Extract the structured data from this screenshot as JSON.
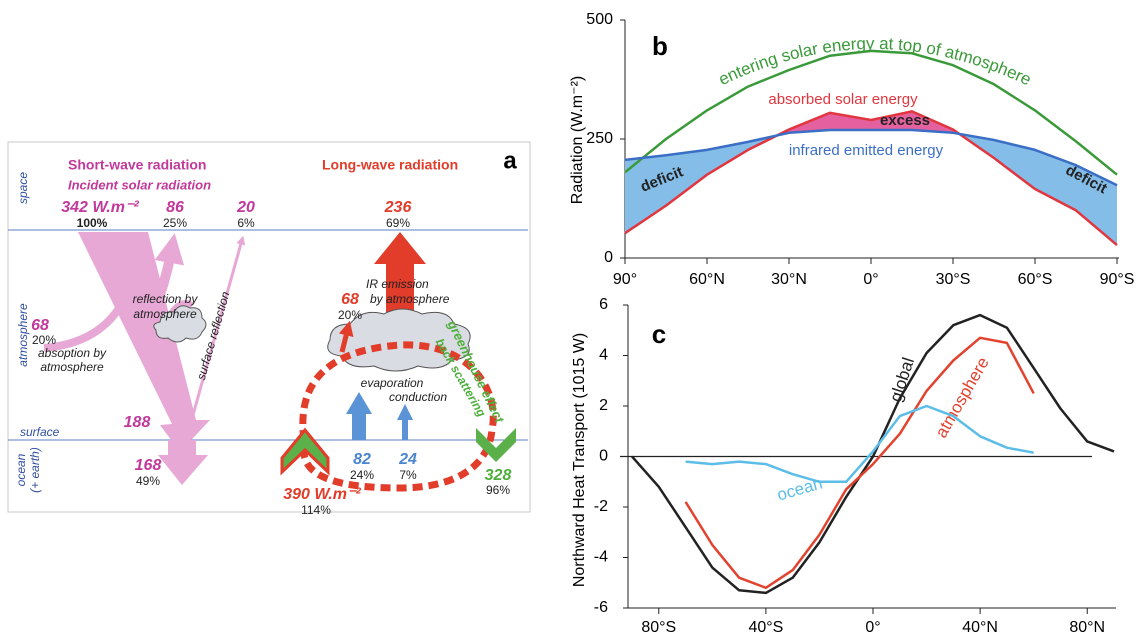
{
  "diagram": {
    "panel_label": "a",
    "short_wave_title": "Short-wave radiation",
    "short_wave_subtitle": "Incident solar radiation",
    "long_wave_title": "Long-wave radiation",
    "layers": {
      "space": "space",
      "atmosphere": "atmosphere",
      "surface": "surface",
      "ocean": "ocean",
      "ocean_note": "(+ earth)"
    },
    "incident": {
      "value": "342 W.m⁻²",
      "percent": "100%"
    },
    "reflected_atmosphere": {
      "value": "86",
      "percent": "25%",
      "label": [
        "reflection by",
        "atmosphere"
      ]
    },
    "reflected_surface": {
      "value": "20",
      "percent": "6%",
      "label": "surface reflection"
    },
    "absorbed_atmosphere": {
      "value": "68",
      "percent": "20%",
      "label": [
        "absoption by",
        "atmosphere"
      ]
    },
    "surface_in": {
      "value": "188"
    },
    "absorbed_ocean": {
      "value": "168",
      "percent": "49%"
    },
    "outgoing_ir": {
      "value": "236",
      "percent": "69%",
      "label": [
        "IR emission",
        "by atmosphere"
      ]
    },
    "ir_absorbed": {
      "value": "68",
      "percent": "20%"
    },
    "greenhouse": [
      "greenhouse effect",
      "back scattering"
    ],
    "heat_flux": [
      "evaporation",
      "conduction"
    ],
    "evaporation": {
      "value": "82",
      "percent": "24%"
    },
    "conduction": {
      "value": "24",
      "percent": "7%"
    },
    "back_radiation": {
      "value": "328",
      "percent": "96%"
    },
    "surface_emission": {
      "value": "390 W.m⁻²",
      "percent": "114%"
    }
  },
  "chart_data": [
    {
      "type": "line",
      "panel_label": "b",
      "ylabel": "Radiation (W.m⁻²)",
      "x": [
        90,
        75,
        60,
        45,
        30,
        15,
        0,
        -15,
        -30,
        -45,
        -60,
        -75,
        -90
      ],
      "xlim": [
        90,
        -90
      ],
      "xticks": [
        {
          "value": 90,
          "label": "90°"
        },
        {
          "value": 60,
          "label": "60°N"
        },
        {
          "value": 30,
          "label": "30°N"
        },
        {
          "value": 0,
          "label": "0°"
        },
        {
          "value": -30,
          "label": "30°S"
        },
        {
          "value": -60,
          "label": "60°S"
        },
        {
          "value": -90,
          "label": "90°S"
        }
      ],
      "ylim": [
        0,
        500
      ],
      "yticks": [
        0,
        250,
        500
      ],
      "series": [
        {
          "name": "entering solar energy at top of atmosphere",
          "color": "#3a9a3a",
          "values": [
            180,
            250,
            310,
            360,
            395,
            425,
            435,
            430,
            405,
            365,
            310,
            245,
            175
          ]
        },
        {
          "name": "absorbed solar energy",
          "color": "#e2363f",
          "values": [
            52,
            110,
            175,
            227,
            270,
            305,
            290,
            308,
            270,
            210,
            145,
            100,
            27
          ]
        },
        {
          "name": "infrared emitted energy",
          "color": "#3b6fc6",
          "values": [
            206,
            216,
            227,
            244,
            263,
            269,
            269,
            269,
            263,
            248,
            227,
            195,
            153
          ]
        }
      ],
      "fill_colors": {
        "excess": "#e5609f",
        "deficit": "#84bde8"
      },
      "annotations": [
        "excess",
        "deficit",
        "deficit"
      ]
    },
    {
      "type": "line",
      "panel_label": "c",
      "ylabel": "Northward Heat Transport  (1015 W)",
      "x": [
        -90,
        -80,
        -70,
        -60,
        -50,
        -40,
        -30,
        -20,
        -10,
        0,
        10,
        20,
        30,
        40,
        50,
        60,
        70,
        80,
        90
      ],
      "xlim": [
        -90,
        90
      ],
      "xticks": [
        {
          "value": -80,
          "label": "80°S"
        },
        {
          "value": -40,
          "label": "40°S"
        },
        {
          "value": 0,
          "label": "0°"
        },
        {
          "value": 40,
          "label": "40°N"
        },
        {
          "value": 80,
          "label": "80°N"
        }
      ],
      "ylim": [
        -6,
        6
      ],
      "yticks": [
        -6,
        -4,
        -2,
        0,
        2,
        4,
        6
      ],
      "series": [
        {
          "name": "global",
          "color": "#222222",
          "values": [
            0,
            -1.2,
            -2.8,
            -4.4,
            -5.3,
            -5.4,
            -4.8,
            -3.4,
            -1.6,
            0,
            2.3,
            4.1,
            5.2,
            5.6,
            5.1,
            3.5,
            1.9,
            0.6,
            0.2
          ]
        },
        {
          "name": "atmosphere",
          "color": "#e2432f",
          "values": [
            null,
            null,
            -1.8,
            -3.5,
            -4.8,
            -5.2,
            -4.5,
            -3.1,
            -1.3,
            -0.3,
            0.9,
            2.6,
            3.8,
            4.7,
            4.5,
            2.5,
            null,
            null,
            null
          ]
        },
        {
          "name": "ocean",
          "color": "#5bbde8",
          "values": [
            null,
            null,
            -0.2,
            -0.3,
            -0.2,
            -0.3,
            -0.7,
            -1.0,
            -1.0,
            0.2,
            1.6,
            2.0,
            1.6,
            0.8,
            0.35,
            0.15,
            null,
            null,
            null
          ]
        }
      ]
    }
  ]
}
